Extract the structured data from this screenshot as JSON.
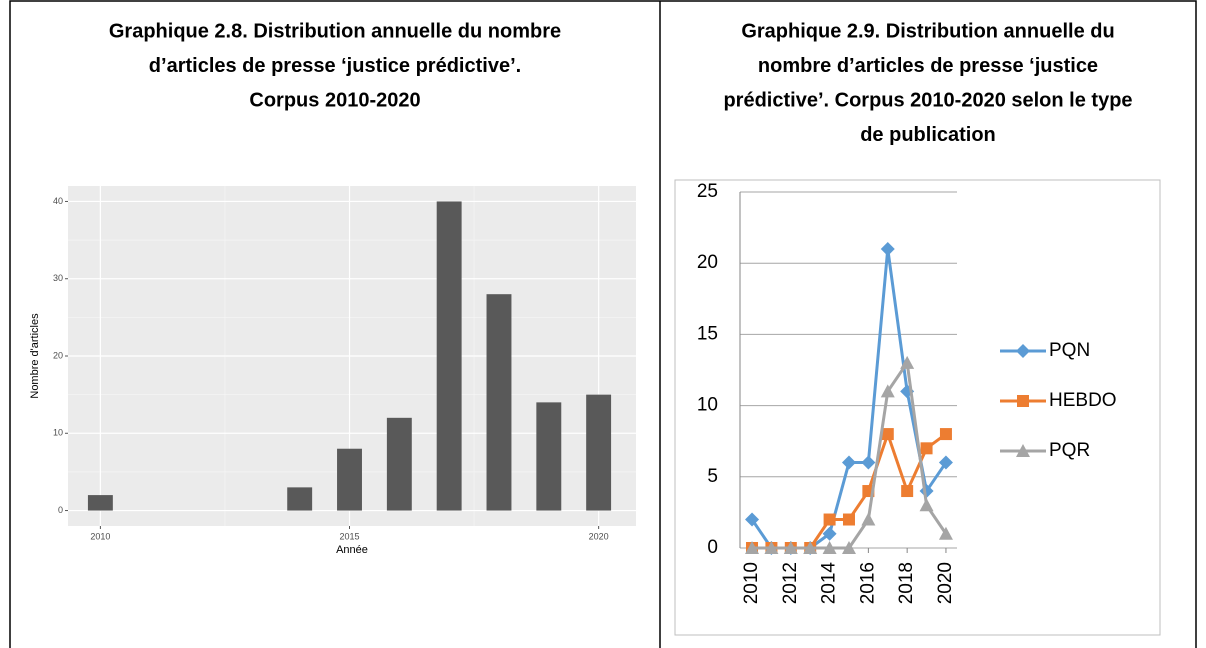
{
  "chart_data": [
    {
      "type": "bar",
      "title_lines": [
        "Graphique 2.8. Distribution annuelle du nombre",
        "d’articles de presse ‘justice prédictive’.",
        "Corpus 2010-2020"
      ],
      "x": [
        2010,
        2014,
        2015,
        2016,
        2017,
        2018,
        2019,
        2020
      ],
      "values": [
        2,
        3,
        8,
        12,
        40,
        28,
        14,
        15
      ],
      "color": "#595959",
      "xlim": [
        2009.35,
        2020.75
      ],
      "xticks": [
        2010,
        2015,
        2020
      ],
      "ylim": [
        -2,
        42
      ],
      "yticks": [
        0,
        10,
        20,
        30,
        40
      ],
      "xlabel": "Année",
      "ylabel": "Nombre d'articles",
      "grid": true
    },
    {
      "type": "line",
      "title_lines": [
        "Graphique 2.9. Distribution annuelle du",
        "nombre d’articles de presse ‘justice",
        "prédictive’. Corpus 2010-2020 selon le type",
        "de publication"
      ],
      "x": [
        2010,
        2011,
        2012,
        2013,
        2014,
        2015,
        2016,
        2017,
        2018,
        2019,
        2020
      ],
      "series": [
        {
          "name": "PQN",
          "color": "#5b9bd5",
          "marker": "diamond",
          "values": [
            2,
            0,
            0,
            0,
            1,
            6,
            6,
            21,
            11,
            4,
            6
          ]
        },
        {
          "name": "HEBDO",
          "color": "#ed7d31",
          "marker": "square",
          "values": [
            0,
            0,
            0,
            0,
            2,
            2,
            4,
            8,
            4,
            7,
            8
          ]
        },
        {
          "name": "PQR",
          "color": "#a5a5a5",
          "marker": "triangle",
          "values": [
            0,
            0,
            0,
            0,
            0,
            0,
            2,
            11,
            13,
            3,
            1
          ]
        }
      ],
      "xlim": [
        2009.38,
        2020.57
      ],
      "xticks": [
        2010,
        2012,
        2014,
        2016,
        2018,
        2020
      ],
      "ylim": [
        0,
        25
      ],
      "yticks": [
        0,
        5,
        10,
        15,
        20,
        25
      ],
      "grid": true,
      "legend": "right"
    }
  ]
}
